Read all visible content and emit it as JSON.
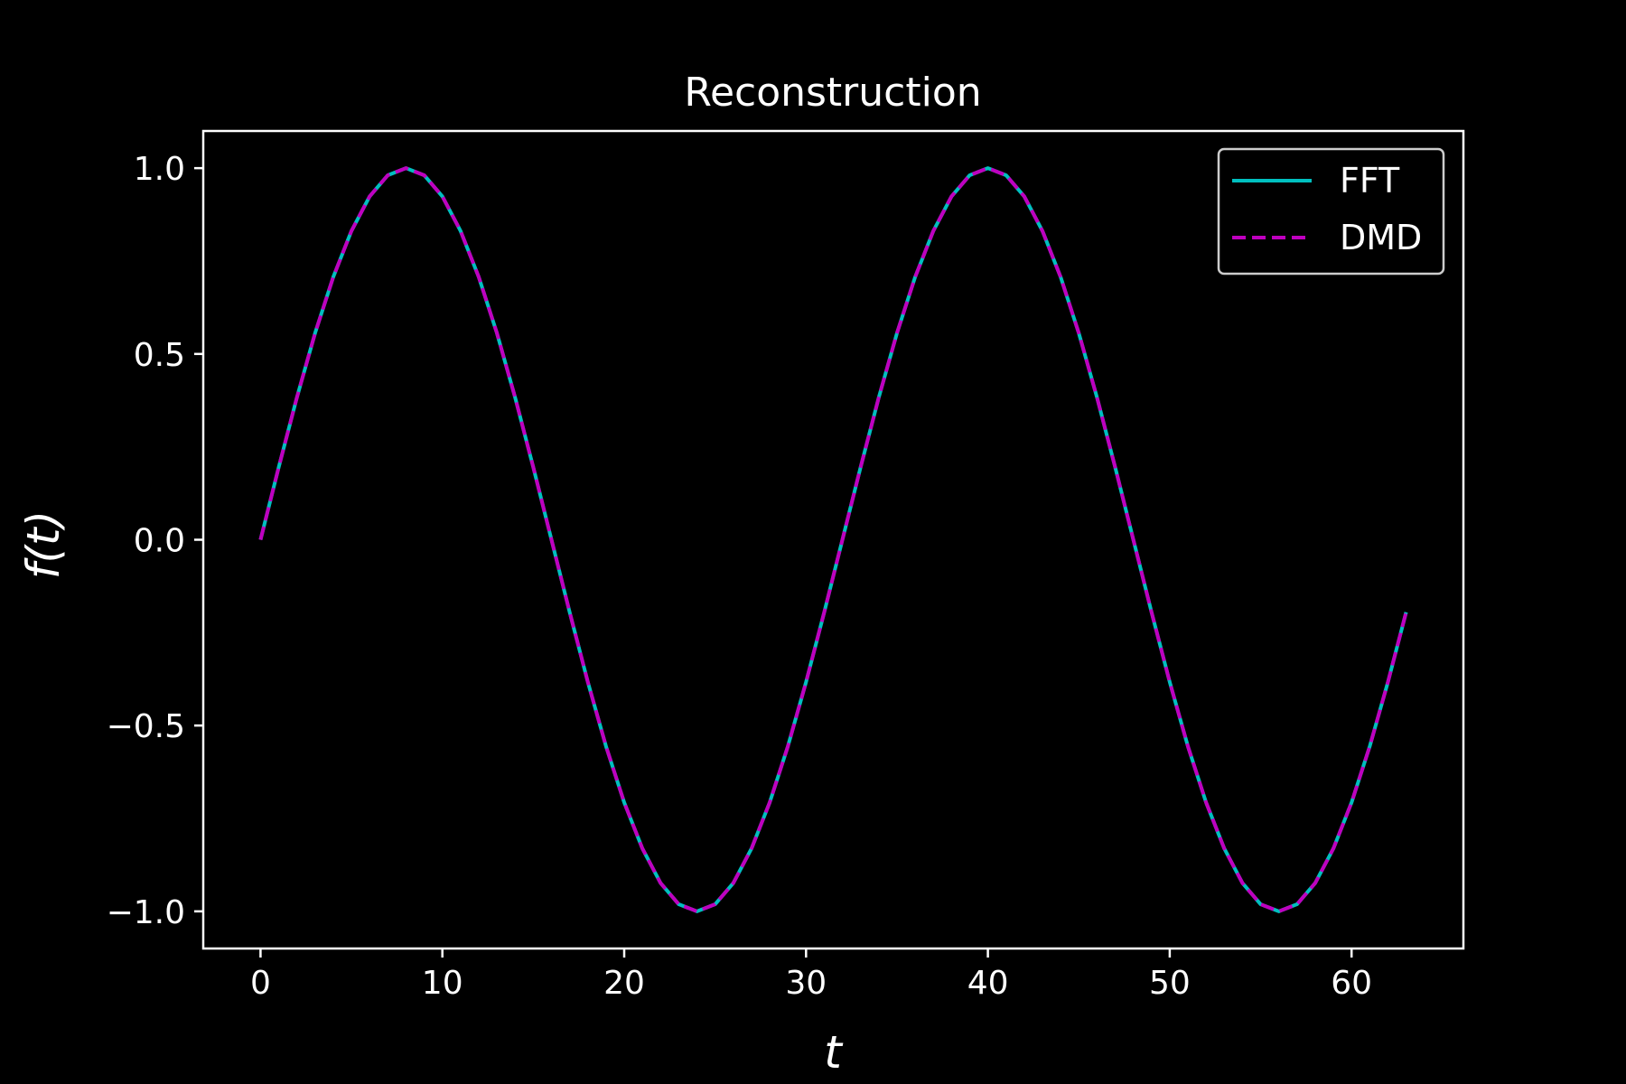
{
  "chart_data": {
    "type": "line",
    "title": "Reconstruction",
    "xlabel": "t",
    "ylabel": "f(t)",
    "xlim": [
      -3.15,
      66.15
    ],
    "ylim": [
      -1.1,
      1.1
    ],
    "xticks": [
      0,
      10,
      20,
      30,
      40,
      50,
      60
    ],
    "xtick_labels": [
      "0",
      "10",
      "20",
      "30",
      "40",
      "50",
      "60"
    ],
    "yticks": [
      1.0,
      0.5,
      0.0,
      -0.5,
      -1.0
    ],
    "ytick_labels": [
      "1.0",
      "0.5",
      "0.0",
      "−0.5",
      "−1.0"
    ],
    "grid": false,
    "legend_position": "top-right",
    "background": "#000000",
    "foreground": "#ffffff",
    "x": [
      0,
      1,
      2,
      3,
      4,
      5,
      6,
      7,
      8,
      9,
      10,
      11,
      12,
      13,
      14,
      15,
      16,
      17,
      18,
      19,
      20,
      21,
      22,
      23,
      24,
      25,
      26,
      27,
      28,
      29,
      30,
      31,
      32,
      33,
      34,
      35,
      36,
      37,
      38,
      39,
      40,
      41,
      42,
      43,
      44,
      45,
      46,
      47,
      48,
      49,
      50,
      51,
      52,
      53,
      54,
      55,
      56,
      57,
      58,
      59,
      60,
      61,
      62,
      63
    ],
    "series": [
      {
        "name": "FFT",
        "color": "#00bfbf",
        "style": "solid",
        "values": [
          0.0,
          0.195,
          0.383,
          0.556,
          0.707,
          0.831,
          0.924,
          0.981,
          1.0,
          0.981,
          0.924,
          0.831,
          0.707,
          0.556,
          0.383,
          0.195,
          0.0,
          -0.195,
          -0.383,
          -0.556,
          -0.707,
          -0.831,
          -0.924,
          -0.981,
          -1.0,
          -0.981,
          -0.924,
          -0.831,
          -0.707,
          -0.556,
          -0.383,
          -0.195,
          0.0,
          0.195,
          0.383,
          0.556,
          0.707,
          0.831,
          0.924,
          0.981,
          1.0,
          0.981,
          0.924,
          0.831,
          0.707,
          0.556,
          0.383,
          0.195,
          0.0,
          -0.195,
          -0.383,
          -0.556,
          -0.707,
          -0.831,
          -0.924,
          -0.981,
          -1.0,
          -0.981,
          -0.924,
          -0.831,
          -0.707,
          -0.556,
          -0.383,
          -0.195
        ]
      },
      {
        "name": "DMD",
        "color": "#bf00bf",
        "style": "dashed",
        "values": [
          0.0,
          0.195,
          0.383,
          0.556,
          0.707,
          0.831,
          0.924,
          0.981,
          1.0,
          0.981,
          0.924,
          0.831,
          0.707,
          0.556,
          0.383,
          0.195,
          0.0,
          -0.195,
          -0.383,
          -0.556,
          -0.707,
          -0.831,
          -0.924,
          -0.981,
          -1.0,
          -0.981,
          -0.924,
          -0.831,
          -0.707,
          -0.556,
          -0.383,
          -0.195,
          0.0,
          0.195,
          0.383,
          0.556,
          0.707,
          0.831,
          0.924,
          0.981,
          1.0,
          0.981,
          0.924,
          0.831,
          0.707,
          0.556,
          0.383,
          0.195,
          0.0,
          -0.195,
          -0.383,
          -0.556,
          -0.707,
          -0.831,
          -0.924,
          -0.981,
          -1.0,
          -0.981,
          -0.924,
          -0.831,
          -0.707,
          -0.556,
          -0.383,
          -0.195
        ]
      }
    ]
  }
}
